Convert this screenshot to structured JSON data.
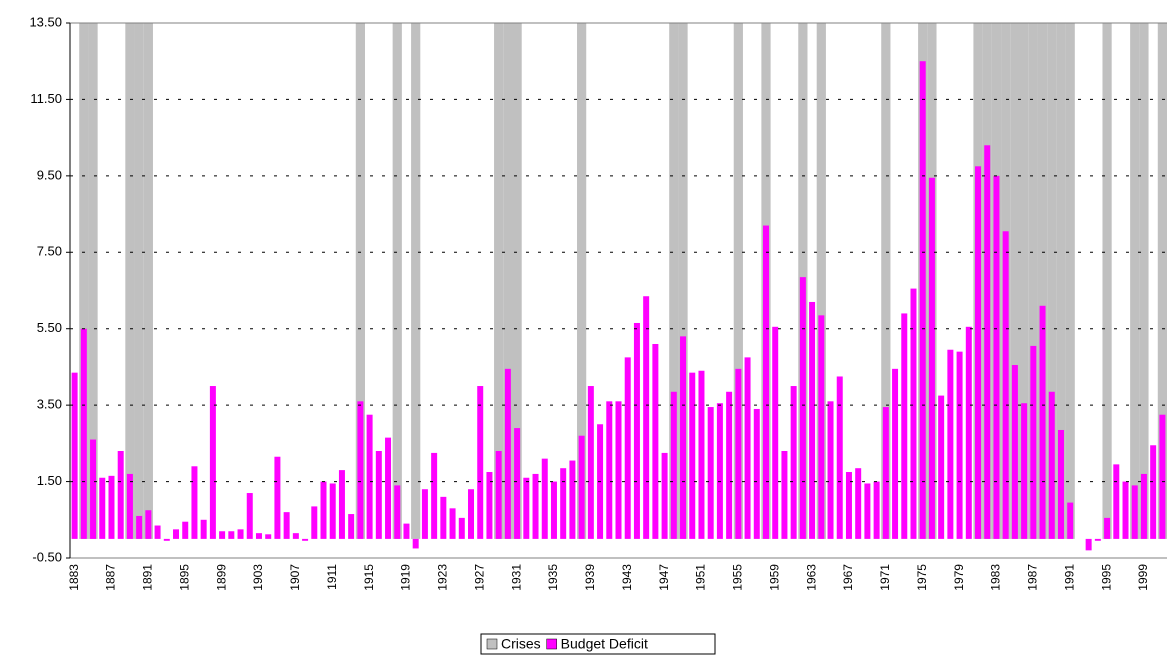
{
  "chart_data": {
    "type": "bar",
    "categories": [
      "1883",
      null,
      null,
      null,
      "1887",
      null,
      null,
      null,
      "1891",
      null,
      null,
      null,
      "1895",
      null,
      null,
      null,
      "1899",
      null,
      null,
      null,
      "1903",
      null,
      null,
      null,
      "1907",
      null,
      null,
      null,
      "1911",
      null,
      null,
      null,
      "1915",
      null,
      null,
      null,
      "1919",
      null,
      null,
      null,
      "1923",
      null,
      null,
      null,
      "1927",
      null,
      null,
      null,
      "1931",
      null,
      null,
      null,
      "1935",
      null,
      null,
      null,
      "1939",
      null,
      null,
      null,
      "1943",
      null,
      null,
      null,
      "1947",
      null,
      null,
      null,
      "1951",
      null,
      null,
      null,
      "1955",
      null,
      null,
      null,
      "1959",
      null,
      null,
      null,
      "1963",
      null,
      null,
      null,
      "1967",
      null,
      null,
      null,
      "1971",
      null,
      null,
      null,
      "1975",
      null,
      null,
      null,
      "1979",
      null,
      null,
      null,
      "1983",
      null,
      null,
      null,
      "1987",
      null,
      null,
      null,
      "1991",
      null,
      null,
      null,
      "1995",
      null,
      null,
      null,
      "1999",
      null,
      null
    ],
    "series": [
      {
        "name": "Crises",
        "color": "#c0c0c0",
        "values": [
          null,
          13.5,
          13.5,
          null,
          null,
          null,
          13.5,
          13.5,
          13.5,
          null,
          null,
          null,
          null,
          null,
          null,
          null,
          null,
          null,
          null,
          null,
          null,
          null,
          null,
          null,
          null,
          null,
          null,
          null,
          null,
          null,
          null,
          13.5,
          null,
          null,
          null,
          13.5,
          null,
          13.5,
          null,
          null,
          null,
          null,
          null,
          null,
          null,
          null,
          13.5,
          13.5,
          13.5,
          null,
          null,
          null,
          null,
          null,
          null,
          13.5,
          null,
          null,
          null,
          null,
          null,
          null,
          null,
          null,
          null,
          13.5,
          13.5,
          null,
          null,
          null,
          null,
          null,
          13.5,
          null,
          null,
          13.5,
          null,
          null,
          null,
          13.5,
          null,
          13.5,
          null,
          null,
          null,
          null,
          null,
          null,
          13.5,
          null,
          null,
          null,
          13.5,
          13.5,
          null,
          null,
          null,
          null,
          13.5,
          13.5,
          13.5,
          13.5,
          13.5,
          13.5,
          13.5,
          13.5,
          13.5,
          13.5,
          13.5,
          null,
          null,
          null,
          13.5,
          null,
          null,
          13.5,
          13.5,
          null,
          13.5
        ]
      },
      {
        "name": "Budget Deficit",
        "color": "#ff00ff",
        "values": [
          4.35,
          5.5,
          2.6,
          1.6,
          1.65,
          2.3,
          1.7,
          0.6,
          0.75,
          0.35,
          -0.05,
          0.25,
          0.45,
          1.9,
          0.5,
          4.0,
          0.2,
          0.2,
          0.25,
          1.2,
          0.15,
          0.12,
          2.15,
          0.7,
          0.15,
          -0.05,
          0.85,
          1.5,
          1.45,
          1.8,
          0.65,
          3.6,
          3.25,
          2.3,
          2.65,
          1.4,
          0.4,
          -0.25,
          1.3,
          2.25,
          1.1,
          0.8,
          0.55,
          1.3,
          4.0,
          1.75,
          2.3,
          4.45,
          2.9,
          1.6,
          1.7,
          2.1,
          1.5,
          1.85,
          2.05,
          2.7,
          4.0,
          3.0,
          3.6,
          3.6,
          4.75,
          5.65,
          6.35,
          5.1,
          2.25,
          3.85,
          5.3,
          4.35,
          4.4,
          3.45,
          3.55,
          3.85,
          4.45,
          4.75,
          3.4,
          8.2,
          5.55,
          2.3,
          4.0,
          6.85,
          6.2,
          5.85,
          3.6,
          4.25,
          1.75,
          1.85,
          1.45,
          1.5,
          3.45,
          4.45,
          5.9,
          6.55,
          12.5,
          9.45,
          3.75,
          4.95,
          4.9,
          5.55,
          9.75,
          10.3,
          9.5,
          8.05,
          4.55,
          3.55,
          5.05,
          6.1,
          3.85,
          2.85,
          0.95,
          0.0,
          -0.3,
          -0.05,
          0.55,
          1.95,
          1.5,
          1.4,
          1.7,
          2.45,
          3.25
        ]
      }
    ],
    "ylim": [
      -0.5,
      13.5
    ],
    "yticks": [
      {
        "value": -0.5,
        "label": "-0.50"
      },
      {
        "value": 1.5,
        "label": "1.50"
      },
      {
        "value": 3.5,
        "label": "3.50"
      },
      {
        "value": 5.5,
        "label": "5.50"
      },
      {
        "value": 7.5,
        "label": "7.50"
      },
      {
        "value": 9.5,
        "label": "9.50"
      },
      {
        "value": 11.5,
        "label": "11.50"
      },
      {
        "value": 13.5,
        "label": "13.50"
      }
    ],
    "grid": true,
    "legend": "bottom"
  }
}
